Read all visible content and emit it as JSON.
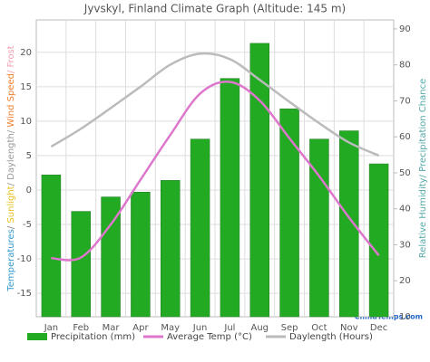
{
  "chart_data": {
    "type": "bar",
    "title": "Jyvskyl, Finland Climate Graph (Altitude: 145 m)",
    "categories": [
      "Jan",
      "Feb",
      "Mar",
      "Apr",
      "May",
      "Jun",
      "Jul",
      "Aug",
      "Sep",
      "Oct",
      "Nov",
      "Dec"
    ],
    "series": [
      {
        "name": "Precipitation (mm)",
        "type": "bar",
        "color": "#22aa22",
        "values": [
          2.2,
          -3.1,
          -1.0,
          -0.3,
          1.4,
          7.4,
          16.2,
          21.3,
          11.8,
          7.4,
          8.6,
          3.8
        ]
      },
      {
        "name": "Average Temp (°C)",
        "type": "line",
        "color": "#dd77cc",
        "values": [
          -9.9,
          -9.8,
          -5.0,
          1.5,
          8.0,
          14.0,
          15.7,
          13.0,
          7.5,
          2.0,
          -4.0,
          -9.5
        ]
      },
      {
        "name": "Daylength (Hours)",
        "type": "line",
        "color": "#bbbbbb",
        "values": [
          6.3,
          8.9,
          11.9,
          15.0,
          18.2,
          19.8,
          19.0,
          16.0,
          12.8,
          9.7,
          6.9,
          5.0
        ]
      }
    ],
    "ylim": [
      -18.4,
      24.7
    ],
    "yticks": [
      -15,
      -10,
      -5,
      0,
      5,
      10,
      15,
      20
    ],
    "y2lim": [
      10,
      92.5
    ],
    "y2ticks": [
      10,
      20,
      30,
      40,
      50,
      60,
      70,
      80,
      90
    ],
    "ylabel": [
      {
        "text": "Temperatures",
        "color": "#3399cc"
      },
      {
        "text": "/ ",
        "color": "#888888"
      },
      {
        "text": "Sunlight",
        "color": "#e8c020"
      },
      {
        "text": "/ Daylength/ ",
        "color": "#999999"
      },
      {
        "text": "Wind Speed",
        "color": "#f08030"
      },
      {
        "text": "/ Frost",
        "color": "#f0a0b0"
      }
    ],
    "y2label": "Relative Humidity/ Precipitation Chance",
    "watermark": "ClimaTemps.com",
    "grid": true
  }
}
